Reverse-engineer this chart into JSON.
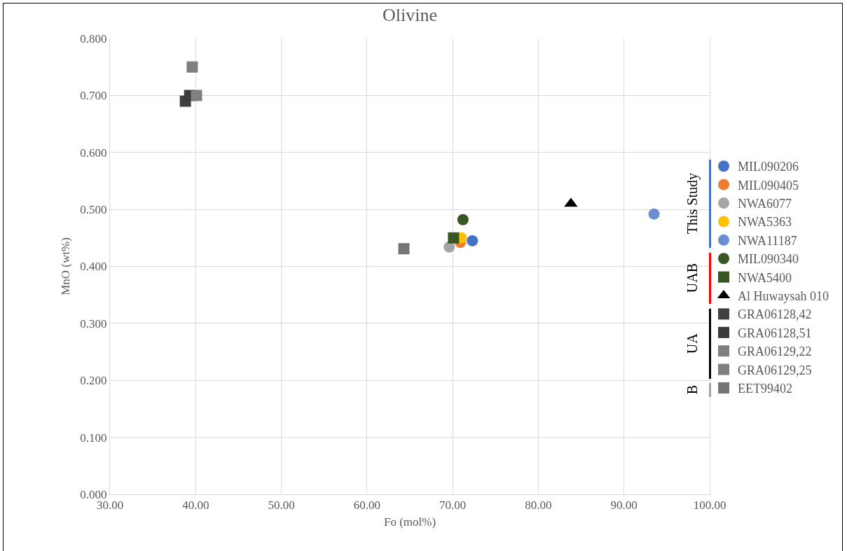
{
  "chart_data": {
    "type": "scatter",
    "title": "Olivine",
    "xlabel": "Fo (mol%)",
    "ylabel": "MnO (wt%)",
    "xlim": [
      30,
      100
    ],
    "xticks": [
      {
        "value": 30,
        "label": "30.00"
      },
      {
        "value": 40,
        "label": "40.00"
      },
      {
        "value": 50,
        "label": "50.00"
      },
      {
        "value": 60,
        "label": "60.00"
      },
      {
        "value": 70,
        "label": "70.00"
      },
      {
        "value": 80,
        "label": "80.00"
      },
      {
        "value": 90,
        "label": "90.00"
      },
      {
        "value": 100,
        "label": "100.00"
      }
    ],
    "ylim": [
      0,
      0.8
    ],
    "yticks": [
      {
        "value": 0,
        "label": "0.000"
      },
      {
        "value": 0.1,
        "label": "0.100"
      },
      {
        "value": 0.2,
        "label": "0.200"
      },
      {
        "value": 0.3,
        "label": "0.300"
      },
      {
        "value": 0.4,
        "label": "0.400"
      },
      {
        "value": 0.5,
        "label": "0.500"
      },
      {
        "value": 0.6,
        "label": "0.600"
      },
      {
        "value": 0.7,
        "label": "0.700"
      },
      {
        "value": 0.8,
        "label": "0.800"
      }
    ],
    "grid": true,
    "legend": "right",
    "annotations": [
      "This Study",
      "UAB",
      "UA",
      "B"
    ],
    "series": [
      {
        "name": "MIL090206",
        "color": "#4472c4",
        "marker": "circle",
        "x": [
          72.3
        ],
        "values": [
          0.445
        ]
      },
      {
        "name": "MIL090405",
        "color": "#ed7d31",
        "marker": "circle",
        "x": [
          70.9
        ],
        "values": [
          0.442
        ]
      },
      {
        "name": "NWA6077",
        "color": "#a5a5a5",
        "marker": "circle",
        "x": [
          69.6
        ],
        "values": [
          0.434
        ]
      },
      {
        "name": "NWA5363",
        "color": "#ffc000",
        "marker": "circle",
        "x": [
          71.0
        ],
        "values": [
          0.45
        ]
      },
      {
        "name": "NWA11187",
        "color": "#6a8fd0",
        "marker": "circle",
        "x": [
          93.5
        ],
        "values": [
          0.492
        ]
      },
      {
        "name": "MIL090340",
        "color": "#375623",
        "marker": "circle",
        "x": [
          71.2
        ],
        "values": [
          0.482
        ]
      },
      {
        "name": "NWA5400",
        "color": "#375623",
        "marker": "square",
        "x": [
          70.1
        ],
        "values": [
          0.45
        ]
      },
      {
        "name": "Al Huwaysah 010",
        "color": "#000000",
        "marker": "triangle",
        "x": [
          83.8
        ],
        "values": [
          0.51
        ]
      },
      {
        "name": "GRA06128,42",
        "color": "#404040",
        "marker": "square",
        "x": [
          38.8
        ],
        "values": [
          0.69
        ]
      },
      {
        "name": "GRA06128,51",
        "color": "#3a3a3a",
        "marker": "square",
        "x": [
          39.3
        ],
        "values": [
          0.7
        ]
      },
      {
        "name": "GRA06129,22",
        "color": "#7f7f7f",
        "marker": "square",
        "x": [
          39.6
        ],
        "values": [
          0.75
        ]
      },
      {
        "name": "GRA06129,25",
        "color": "#808080",
        "marker": "square",
        "x": [
          40.1
        ],
        "values": [
          0.7
        ]
      },
      {
        "name": "EET99402",
        "color": "#767676",
        "marker": "square",
        "x": [
          64.3
        ],
        "values": [
          0.431
        ]
      }
    ]
  }
}
